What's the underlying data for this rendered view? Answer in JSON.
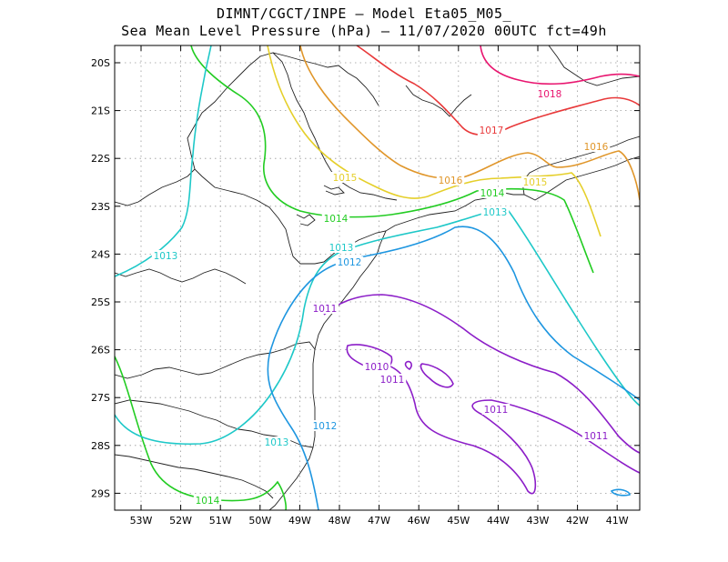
{
  "title_line1": "DIMNT/CGCT/INPE  –   Model Eta05_M05_",
  "title_line2": "Sea Mean Level Pressure (hPa) – 11/07/2020 00UTC fct=49h",
  "y_ticks": [
    "20S",
    "21S",
    "22S",
    "23S",
    "24S",
    "25S",
    "26S",
    "27S",
    "28S",
    "29S"
  ],
  "x_ticks": [
    "53W",
    "52W",
    "51W",
    "50W",
    "49W",
    "48W",
    "47W",
    "46W",
    "45W",
    "44W",
    "43W",
    "42W",
    "41W"
  ],
  "contour_labels": [
    {
      "text": "1018",
      "color": "#e8156f"
    },
    {
      "text": "1017",
      "color": "#e8393a"
    },
    {
      "text": "1016",
      "color": "#e0962a"
    },
    {
      "text": "1016",
      "color": "#e0962a"
    },
    {
      "text": "1015",
      "color": "#e5cf2a"
    },
    {
      "text": "1015",
      "color": "#e5cf2a"
    },
    {
      "text": "1014",
      "color": "#22cc22"
    },
    {
      "text": "1014",
      "color": "#22cc22"
    },
    {
      "text": "1014",
      "color": "#22cc22"
    },
    {
      "text": "1013",
      "color": "#1ec8c8"
    },
    {
      "text": "1013",
      "color": "#1ec8c8"
    },
    {
      "text": "1013",
      "color": "#1ec8c8"
    },
    {
      "text": "1013",
      "color": "#1ec8c8"
    },
    {
      "text": "1012",
      "color": "#1e96e0"
    },
    {
      "text": "1012",
      "color": "#1e96e0"
    },
    {
      "text": "1011",
      "color": "#8c1ec8"
    },
    {
      "text": "1011",
      "color": "#8c1ec8"
    },
    {
      "text": "1011",
      "color": "#8c1ec8"
    },
    {
      "text": "1011",
      "color": "#8c1ec8"
    },
    {
      "text": "1010",
      "color": "#8c1ec8"
    }
  ]
}
